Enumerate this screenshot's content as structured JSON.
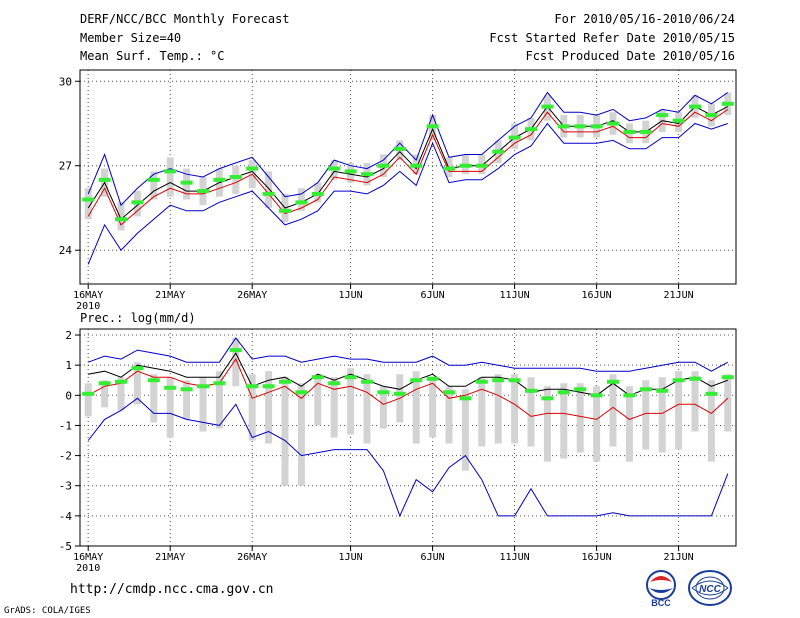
{
  "header": {
    "title": "DERF/NCC/BCC Monthly Forecast",
    "member_size": "Member Size=40",
    "variable": "Mean Surf. Temp.: °C",
    "period": "For 2010/05/16-2010/06/24",
    "start_date": "Fcst Started Refer Date 2010/05/15",
    "produced_date": "Fcst Produced Date 2010/05/16"
  },
  "footer": {
    "url": "http://cmdp.ncc.cma.gov.cn",
    "credit": "GrADS: COLA/IGES",
    "logo_bcc_text": "BCC",
    "logo_ncc_text": "NCC"
  },
  "colors": {
    "spread_line": "#0000cc",
    "mean_line": "#000000",
    "red_line": "#dd0000",
    "bar": "#d3d3d3",
    "marker": "#33ee33",
    "grid": "#555555"
  },
  "chart_data": [
    {
      "type": "line",
      "title": "Mean Surf. Temp.: °C",
      "ylabel": "°C",
      "ylim": [
        22.8,
        30.4
      ],
      "yticks": [
        24,
        27,
        30
      ],
      "ytick_labels": [
        "24",
        "27",
        "30"
      ],
      "xticks": [
        1,
        6,
        11,
        17,
        22,
        27,
        32,
        37
      ],
      "xtick_labels": [
        "16MAY",
        "21MAY",
        "26MAY",
        "1JUN",
        "6JUN",
        "11JUN",
        "16JUN",
        "21JUN"
      ],
      "xtick_sub": "2010",
      "x": [
        1,
        2,
        3,
        4,
        5,
        6,
        7,
        8,
        9,
        10,
        11,
        12,
        13,
        14,
        15,
        16,
        17,
        18,
        19,
        20,
        21,
        22,
        23,
        24,
        25,
        26,
        27,
        28,
        29,
        30,
        31,
        32,
        33,
        34,
        35,
        36,
        37,
        38,
        39,
        40
      ],
      "series": [
        {
          "name": "max",
          "values": [
            26.0,
            27.4,
            25.6,
            26.2,
            26.7,
            26.9,
            26.7,
            26.6,
            26.9,
            27.1,
            27.3,
            26.6,
            25.9,
            26.0,
            26.4,
            27.2,
            27.0,
            26.9,
            27.2,
            27.8,
            27.2,
            28.8,
            27.3,
            27.4,
            27.4,
            27.9,
            28.4,
            28.7,
            29.6,
            28.9,
            28.9,
            28.8,
            29.0,
            28.6,
            28.7,
            29.0,
            28.9,
            29.5,
            29.2,
            29.6
          ]
        },
        {
          "name": "mean",
          "values": [
            25.5,
            26.4,
            25.1,
            25.6,
            26.1,
            26.4,
            26.1,
            26.1,
            26.4,
            26.6,
            26.8,
            26.2,
            25.5,
            25.7,
            26.0,
            26.8,
            26.7,
            26.6,
            26.9,
            27.5,
            26.9,
            28.3,
            26.9,
            27.0,
            27.0,
            27.5,
            28.0,
            28.3,
            29.1,
            28.4,
            28.4,
            28.4,
            28.6,
            28.2,
            28.2,
            28.6,
            28.5,
            29.1,
            28.8,
            29.1
          ]
        },
        {
          "name": "red",
          "values": [
            25.2,
            26.2,
            24.9,
            25.4,
            25.9,
            26.2,
            26.0,
            26.0,
            26.2,
            26.4,
            26.7,
            26.0,
            25.3,
            25.5,
            25.8,
            26.6,
            26.5,
            26.4,
            26.7,
            27.3,
            26.7,
            28.1,
            26.8,
            26.8,
            26.8,
            27.3,
            27.8,
            28.1,
            28.9,
            28.2,
            28.2,
            28.2,
            28.4,
            28.0,
            28.0,
            28.5,
            28.4,
            28.9,
            28.6,
            29.0
          ]
        },
        {
          "name": "min",
          "values": [
            23.5,
            24.9,
            24.0,
            24.6,
            25.1,
            25.6,
            25.4,
            25.4,
            25.7,
            25.9,
            26.1,
            25.5,
            24.9,
            25.1,
            25.4,
            26.1,
            26.1,
            26.0,
            26.3,
            26.8,
            26.3,
            27.8,
            26.4,
            26.5,
            26.5,
            26.9,
            27.4,
            27.7,
            28.5,
            27.8,
            27.8,
            27.8,
            27.9,
            27.6,
            27.6,
            28.0,
            28.0,
            28.5,
            28.3,
            28.5
          ]
        }
      ],
      "bars": [
        {
          "x": 1,
          "low": 25.1,
          "high": 26.2,
          "marker": 25.8
        },
        {
          "x": 2,
          "low": 25.9,
          "high": 26.9,
          "marker": 26.5
        },
        {
          "x": 3,
          "low": 24.7,
          "high": 25.7,
          "marker": 25.1
        },
        {
          "x": 4,
          "low": 25.2,
          "high": 26.1,
          "marker": 25.7
        },
        {
          "x": 5,
          "low": 25.8,
          "high": 26.8,
          "marker": 26.5
        },
        {
          "x": 6,
          "low": 25.9,
          "high": 27.3,
          "marker": 26.8
        },
        {
          "x": 7,
          "low": 25.8,
          "high": 26.9,
          "marker": 26.4
        },
        {
          "x": 8,
          "low": 25.6,
          "high": 26.6,
          "marker": 26.1
        },
        {
          "x": 9,
          "low": 25.9,
          "high": 26.9,
          "marker": 26.5
        },
        {
          "x": 10,
          "low": 26.0,
          "high": 27.0,
          "marker": 26.6
        },
        {
          "x": 11,
          "low": 26.2,
          "high": 27.2,
          "marker": 26.9
        },
        {
          "x": 12,
          "low": 25.5,
          "high": 26.8,
          "marker": 26.0
        },
        {
          "x": 13,
          "low": 25.0,
          "high": 26.0,
          "marker": 25.4
        },
        {
          "x": 14,
          "low": 25.4,
          "high": 26.2,
          "marker": 25.7
        },
        {
          "x": 15,
          "low": 25.7,
          "high": 26.4,
          "marker": 26.0
        },
        {
          "x": 16,
          "low": 26.5,
          "high": 27.2,
          "marker": 26.9
        },
        {
          "x": 17,
          "low": 26.4,
          "high": 27.1,
          "marker": 26.8
        },
        {
          "x": 18,
          "low": 26.3,
          "high": 27.1,
          "marker": 26.7
        },
        {
          "x": 19,
          "low": 26.6,
          "high": 27.4,
          "marker": 27.0
        },
        {
          "x": 20,
          "low": 27.2,
          "high": 27.9,
          "marker": 27.6
        },
        {
          "x": 21,
          "low": 26.7,
          "high": 27.4,
          "marker": 27.0
        },
        {
          "x": 22,
          "low": 27.9,
          "high": 28.8,
          "marker": 28.4
        },
        {
          "x": 23,
          "low": 26.6,
          "high": 27.3,
          "marker": 26.9
        },
        {
          "x": 24,
          "low": 26.7,
          "high": 27.4,
          "marker": 27.0
        },
        {
          "x": 25,
          "low": 26.7,
          "high": 27.4,
          "marker": 27.0
        },
        {
          "x": 26,
          "low": 27.1,
          "high": 27.9,
          "marker": 27.5
        },
        {
          "x": 27,
          "low": 27.6,
          "high": 28.5,
          "marker": 28.0
        },
        {
          "x": 28,
          "low": 27.9,
          "high": 28.7,
          "marker": 28.3
        },
        {
          "x": 29,
          "low": 28.6,
          "high": 29.5,
          "marker": 29.1
        },
        {
          "x": 30,
          "low": 28.0,
          "high": 28.8,
          "marker": 28.4
        },
        {
          "x": 31,
          "low": 28.0,
          "high": 28.8,
          "marker": 28.4
        },
        {
          "x": 32,
          "low": 28.0,
          "high": 28.8,
          "marker": 28.4
        },
        {
          "x": 33,
          "low": 28.1,
          "high": 28.9,
          "marker": 28.5
        },
        {
          "x": 34,
          "low": 27.8,
          "high": 28.5,
          "marker": 28.2
        },
        {
          "x": 35,
          "low": 27.8,
          "high": 28.6,
          "marker": 28.2
        },
        {
          "x": 36,
          "low": 28.2,
          "high": 29.0,
          "marker": 28.8
        },
        {
          "x": 37,
          "low": 28.2,
          "high": 28.9,
          "marker": 28.6
        },
        {
          "x": 38,
          "low": 28.7,
          "high": 29.5,
          "marker": 29.1
        },
        {
          "x": 39,
          "low": 28.4,
          "high": 29.2,
          "marker": 28.8
        },
        {
          "x": 40,
          "low": 28.8,
          "high": 29.6,
          "marker": 29.2
        }
      ]
    },
    {
      "type": "line",
      "title": "Prec.: log(mm/d)",
      "ylabel": "log(mm/d)",
      "ylim": [
        -5,
        2.2
      ],
      "yticks": [
        -5,
        -4,
        -3,
        -2,
        -1,
        0,
        1,
        2
      ],
      "ytick_labels": [
        "-5",
        "-4",
        "-3",
        "-2",
        "-1",
        "0",
        "1",
        "2"
      ],
      "xticks": [
        1,
        6,
        11,
        17,
        22,
        27,
        32,
        37
      ],
      "xtick_labels": [
        "16MAY",
        "21MAY",
        "26MAY",
        "1JUN",
        "6JUN",
        "11JUN",
        "16JUN",
        "21JUN"
      ],
      "xtick_sub": "2010",
      "x": [
        1,
        2,
        3,
        4,
        5,
        6,
        7,
        8,
        9,
        10,
        11,
        12,
        13,
        14,
        15,
        16,
        17,
        18,
        19,
        20,
        21,
        22,
        23,
        24,
        25,
        26,
        27,
        28,
        29,
        30,
        31,
        32,
        33,
        34,
        35,
        36,
        37,
        38,
        39,
        40
      ],
      "series": [
        {
          "name": "max",
          "values": [
            1.1,
            1.3,
            1.2,
            1.5,
            1.4,
            1.3,
            1.1,
            1.1,
            1.1,
            1.9,
            1.2,
            1.3,
            1.3,
            1.1,
            1.2,
            1.3,
            1.2,
            1.2,
            1.1,
            1.1,
            1.1,
            1.3,
            1.0,
            1.0,
            1.1,
            1.0,
            0.9,
            0.9,
            0.9,
            0.9,
            0.9,
            0.8,
            0.8,
            0.8,
            0.9,
            1.0,
            1.1,
            1.1,
            0.8,
            1.1
          ]
        },
        {
          "name": "mean",
          "values": [
            0.7,
            0.8,
            0.6,
            1.0,
            0.9,
            0.8,
            0.6,
            0.6,
            0.6,
            1.4,
            0.3,
            0.5,
            0.6,
            0.3,
            0.7,
            0.5,
            0.7,
            0.5,
            0.3,
            0.2,
            0.5,
            0.7,
            0.3,
            0.3,
            0.6,
            0.6,
            0.5,
            0.1,
            0.2,
            0.2,
            0.1,
            0.0,
            0.4,
            0.0,
            0.2,
            0.2,
            0.5,
            0.6,
            0.3,
            0.5
          ]
        },
        {
          "name": "red",
          "values": [
            0.0,
            0.3,
            0.4,
            0.8,
            0.6,
            0.6,
            0.4,
            0.3,
            0.4,
            1.2,
            -0.1,
            0.1,
            0.3,
            -0.1,
            0.4,
            0.2,
            0.3,
            0.1,
            -0.3,
            -0.1,
            0.2,
            0.4,
            -0.1,
            0.0,
            0.2,
            0.0,
            -0.3,
            -0.7,
            -0.6,
            -0.6,
            -0.7,
            -0.8,
            -0.4,
            -0.8,
            -0.6,
            -0.6,
            -0.3,
            -0.3,
            -0.6,
            -0.1
          ]
        },
        {
          "name": "min",
          "values": [
            -1.5,
            -0.8,
            -0.5,
            -0.1,
            -0.6,
            -0.6,
            -0.8,
            -0.9,
            -1.0,
            -0.3,
            -1.4,
            -1.2,
            -1.5,
            -2.0,
            -1.9,
            -1.8,
            -1.8,
            -1.8,
            -2.5,
            -4.0,
            -2.8,
            -3.2,
            -2.4,
            -2.0,
            -2.8,
            -4.0,
            -4.0,
            -3.1,
            -4.0,
            -4.0,
            -4.0,
            -4.0,
            -3.9,
            -4.0,
            -4.0,
            -4.0,
            -4.0,
            -4.0,
            -4.0,
            -2.6
          ]
        }
      ],
      "bars": [
        {
          "x": 1,
          "low": -0.7,
          "high": 0.4,
          "marker": 0.05
        },
        {
          "x": 2,
          "low": -0.4,
          "high": 0.5,
          "marker": 0.4
        },
        {
          "x": 3,
          "low": -0.5,
          "high": 0.6,
          "marker": 0.45
        },
        {
          "x": 4,
          "low": -0.3,
          "high": 1.1,
          "marker": 0.9
        },
        {
          "x": 5,
          "low": -0.9,
          "high": 0.7,
          "marker": 0.5
        },
        {
          "x": 6,
          "low": -1.4,
          "high": 0.6,
          "marker": 0.25
        },
        {
          "x": 7,
          "low": -0.8,
          "high": 0.5,
          "marker": 0.2
        },
        {
          "x": 8,
          "low": -1.2,
          "high": 0.6,
          "marker": 0.3
        },
        {
          "x": 9,
          "low": -1.1,
          "high": 0.8,
          "marker": 0.4
        },
        {
          "x": 10,
          "low": 0.3,
          "high": 1.9,
          "marker": 1.5
        },
        {
          "x": 11,
          "low": -1.5,
          "high": 0.7,
          "marker": 0.3
        },
        {
          "x": 12,
          "low": -1.6,
          "high": 0.8,
          "marker": 0.3
        },
        {
          "x": 13,
          "low": -3.0,
          "high": 0.6,
          "marker": 0.45
        },
        {
          "x": 14,
          "low": -3.0,
          "high": 0.4,
          "marker": 0.1
        },
        {
          "x": 15,
          "low": -1.0,
          "high": 0.7,
          "marker": 0.6
        },
        {
          "x": 16,
          "low": -1.4,
          "high": 0.6,
          "marker": 0.4
        },
        {
          "x": 17,
          "low": -1.3,
          "high": 0.9,
          "marker": 0.6
        },
        {
          "x": 18,
          "low": -1.6,
          "high": 0.7,
          "marker": 0.45
        },
        {
          "x": 19,
          "low": -1.1,
          "high": 0.3,
          "marker": 0.1
        },
        {
          "x": 20,
          "low": -0.9,
          "high": 0.7,
          "marker": 0.05
        },
        {
          "x": 21,
          "low": -1.6,
          "high": 0.8,
          "marker": 0.5
        },
        {
          "x": 22,
          "low": -1.4,
          "high": 0.6,
          "marker": 0.55
        },
        {
          "x": 23,
          "low": -1.6,
          "high": 0.3,
          "marker": 0.1
        },
        {
          "x": 24,
          "low": -2.5,
          "high": 0.2,
          "marker": -0.1
        },
        {
          "x": 25,
          "low": -1.7,
          "high": 0.6,
          "marker": 0.45
        },
        {
          "x": 26,
          "low": -1.6,
          "high": 0.7,
          "marker": 0.5
        },
        {
          "x": 27,
          "low": -1.6,
          "high": 0.7,
          "marker": 0.5
        },
        {
          "x": 28,
          "low": -1.7,
          "high": 0.6,
          "marker": 0.15
        },
        {
          "x": 29,
          "low": -2.2,
          "high": 0.3,
          "marker": -0.1
        },
        {
          "x": 30,
          "low": -2.1,
          "high": 0.4,
          "marker": 0.1
        },
        {
          "x": 31,
          "low": -1.9,
          "high": 0.4,
          "marker": 0.2
        },
        {
          "x": 32,
          "low": -2.2,
          "high": 0.3,
          "marker": 0.0
        },
        {
          "x": 33,
          "low": -1.7,
          "high": 0.7,
          "marker": 0.45
        },
        {
          "x": 34,
          "low": -2.2,
          "high": 0.3,
          "marker": 0.0
        },
        {
          "x": 35,
          "low": -1.8,
          "high": 0.5,
          "marker": 0.2
        },
        {
          "x": 36,
          "low": -1.9,
          "high": 0.6,
          "marker": 0.15
        },
        {
          "x": 37,
          "low": -1.8,
          "high": 0.8,
          "marker": 0.5
        },
        {
          "x": 38,
          "low": -1.2,
          "high": 0.8,
          "marker": 0.55
        },
        {
          "x": 39,
          "low": -2.2,
          "high": 0.5,
          "marker": 0.05
        },
        {
          "x": 40,
          "low": -1.2,
          "high": 0.7,
          "marker": 0.6
        }
      ]
    }
  ]
}
